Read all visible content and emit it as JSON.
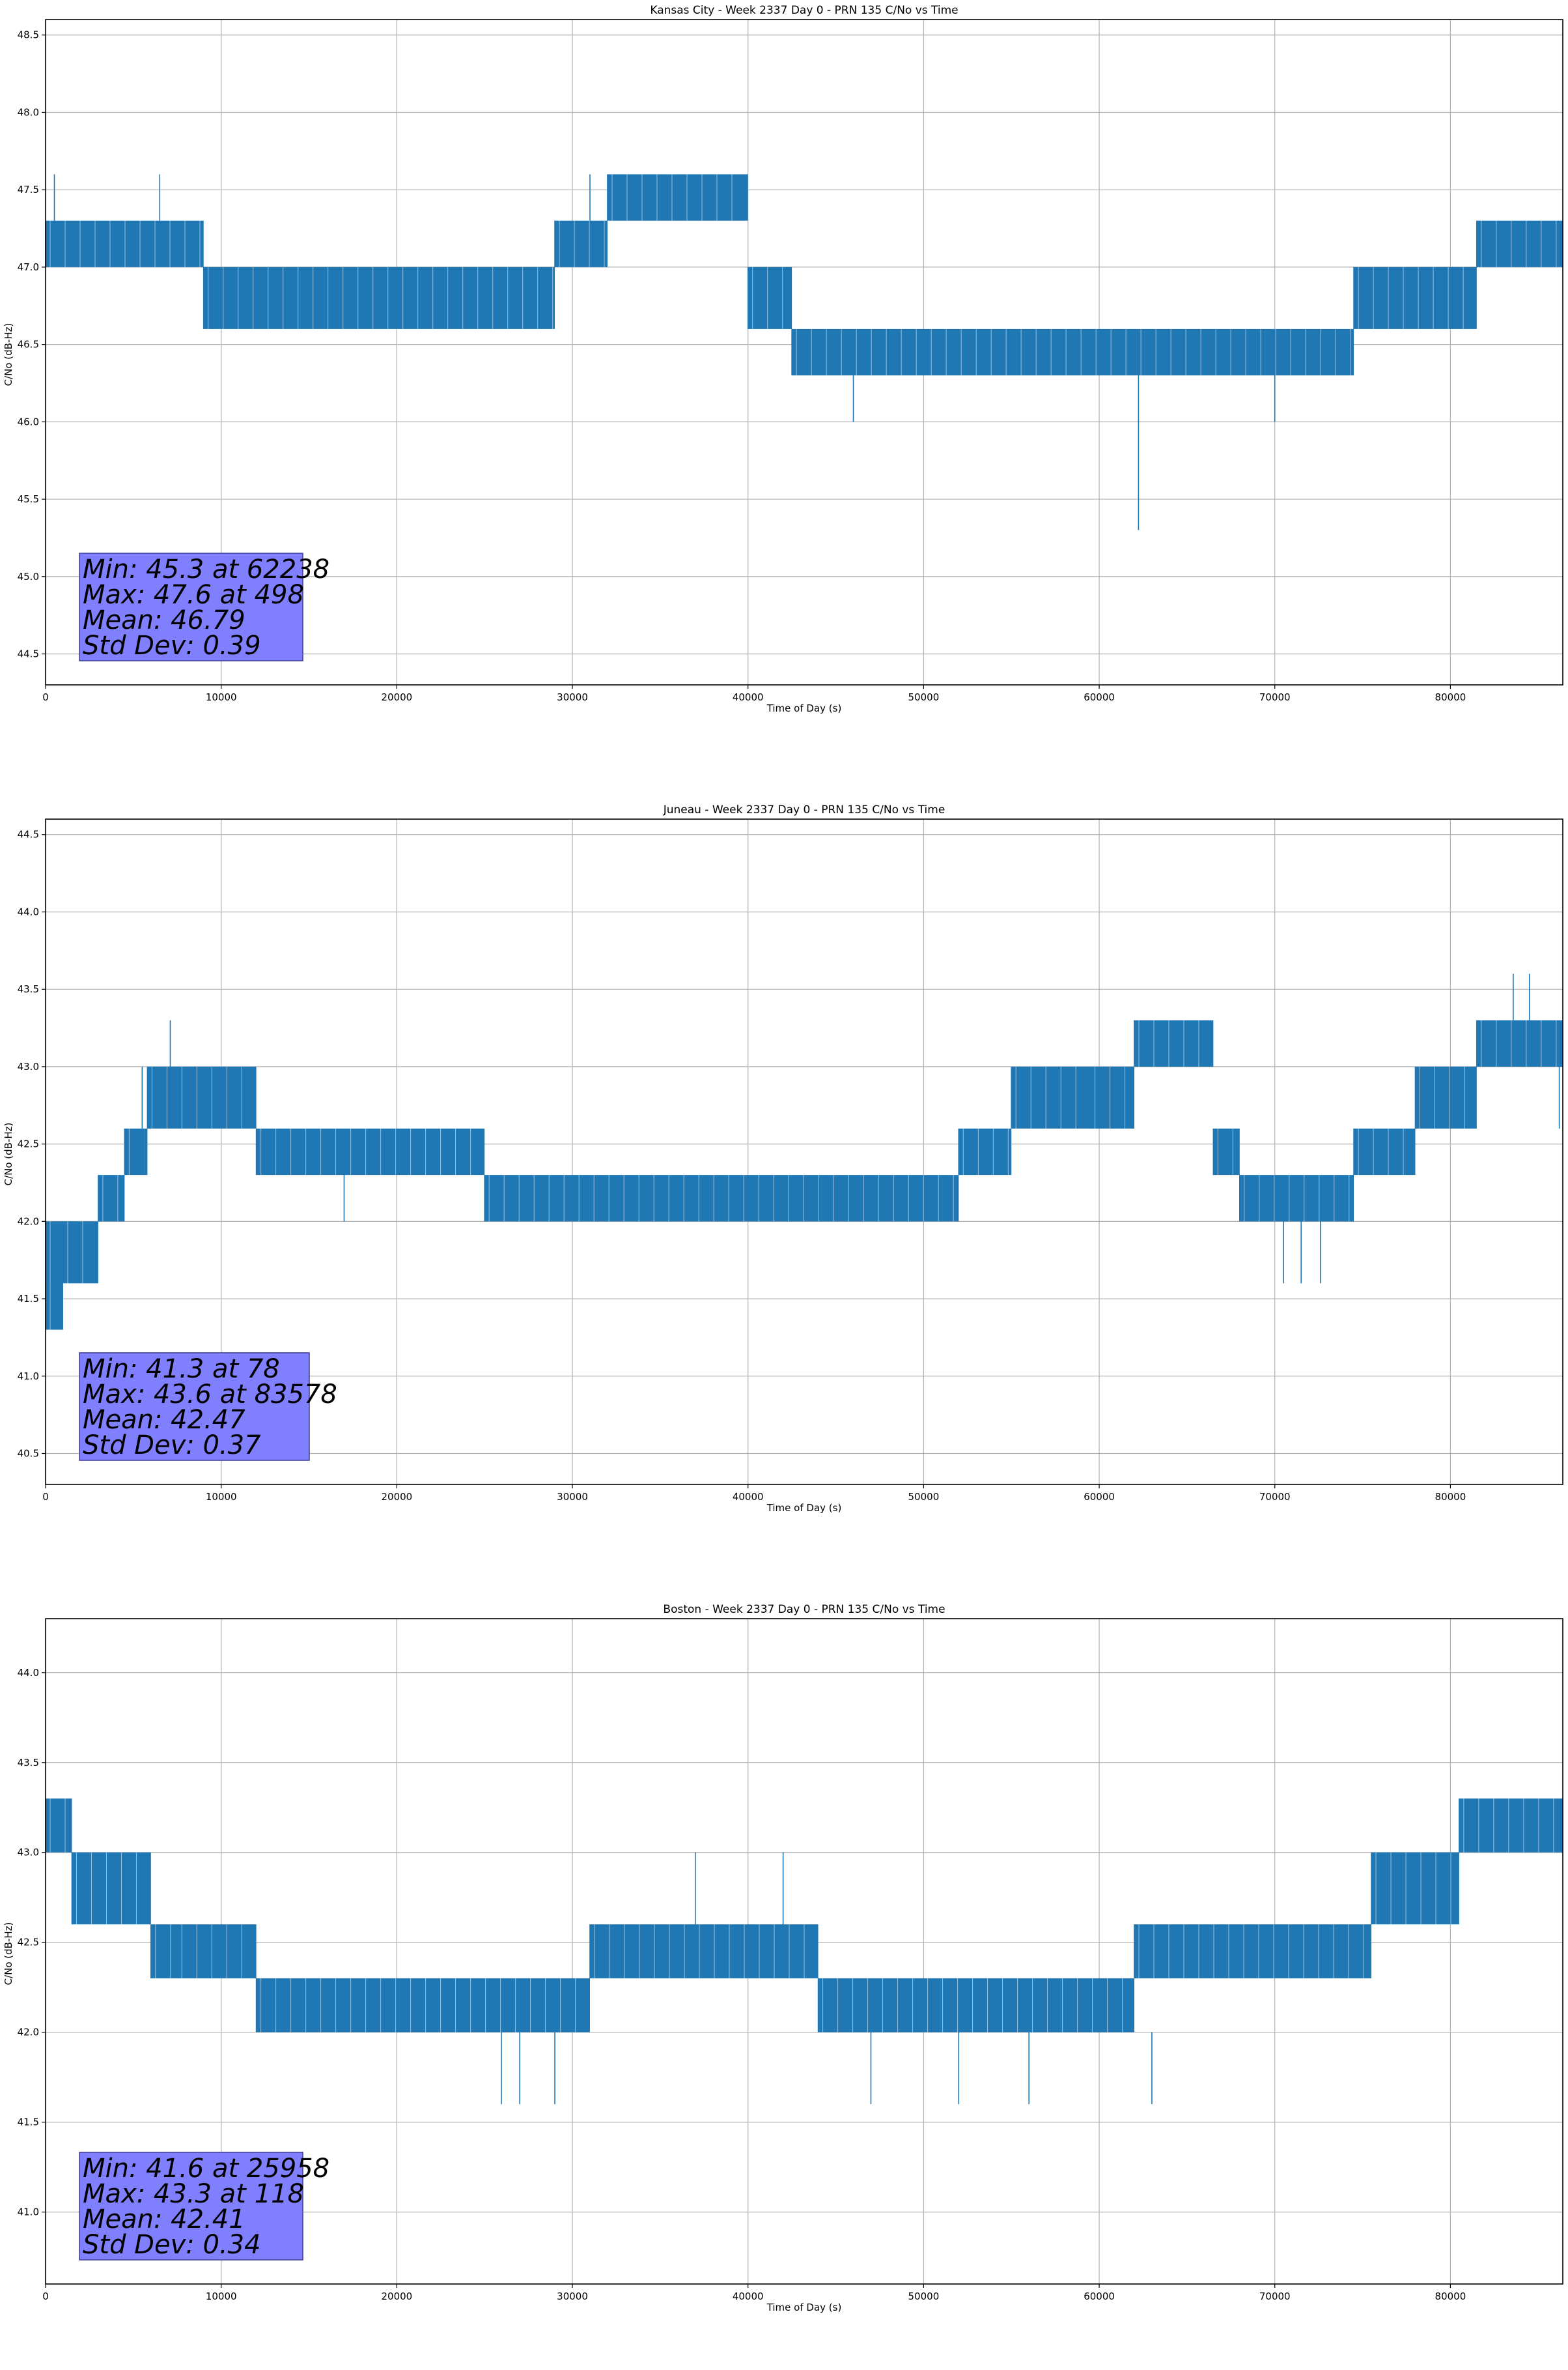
{
  "chart_data": [
    {
      "type": "line",
      "title": "Kansas City - Week 2337 Day 0 - PRN 135 C/No vs Time",
      "xlabel": "Time of Day (s)",
      "ylabel": "C/No (dB-Hz)",
      "xlim": [
        0,
        86400
      ],
      "ylim": [
        44.3,
        48.6
      ],
      "xticks": [
        0,
        10000,
        20000,
        30000,
        40000,
        50000,
        60000,
        70000,
        80000
      ],
      "yticks": [
        "44.5",
        "45.0",
        "45.5",
        "46.0",
        "46.5",
        "47.0",
        "47.5",
        "48.0",
        "48.5"
      ],
      "grid": true,
      "color": "#1f77b4",
      "series": [
        {
          "segments": [
            {
              "x": [
                0,
                9000
              ],
              "y": [
                47.0,
                47.3
              ]
            },
            {
              "x": [
                9000,
                29000
              ],
              "y": [
                46.6,
                47.0
              ]
            },
            {
              "x": [
                29000,
                32000
              ],
              "y": [
                47.0,
                47.3
              ]
            },
            {
              "x": [
                32000,
                40000
              ],
              "y": [
                47.3,
                47.6
              ]
            },
            {
              "x": [
                40000,
                42500
              ],
              "y": [
                46.6,
                47.0
              ]
            },
            {
              "x": [
                42500,
                74500
              ],
              "y": [
                46.3,
                46.6
              ]
            },
            {
              "x": [
                74500,
                81500
              ],
              "y": [
                46.6,
                47.0
              ]
            },
            {
              "x": [
                81500,
                86400
              ],
              "y": [
                47.0,
                47.3
              ]
            }
          ],
          "spikes": [
            {
              "x": 500,
              "y": [
                47.3,
                47.6
              ]
            },
            {
              "x": 6500,
              "y": [
                47.3,
                47.6
              ]
            },
            {
              "x": 9500,
              "y": [
                46.6,
                47.0
              ]
            },
            {
              "x": 31000,
              "y": [
                47.3,
                47.6
              ]
            },
            {
              "x": 46000,
              "y": [
                46.0,
                46.3
              ]
            },
            {
              "x": 62238,
              "y": [
                45.3,
                46.3
              ]
            },
            {
              "x": 70000,
              "y": [
                46.0,
                46.3
              ]
            },
            {
              "x": 76000,
              "y": [
                46.6,
                47.0
              ]
            }
          ]
        }
      ],
      "stats": {
        "line1": "Min: 45.3 at 62238",
        "line2": "Max: 47.6 at 498",
        "line3": "Mean: 46.79",
        "line4": "Std Dev: 0.39"
      }
    },
    {
      "type": "line",
      "title": "Juneau - Week 2337 Day 0 - PRN 135 C/No vs Time",
      "xlabel": "Time of Day (s)",
      "ylabel": "C/No (dB-Hz)",
      "xlim": [
        0,
        86400
      ],
      "ylim": [
        40.3,
        44.6
      ],
      "xticks": [
        0,
        10000,
        20000,
        30000,
        40000,
        50000,
        60000,
        70000,
        80000
      ],
      "yticks": [
        "40.5",
        "41.0",
        "41.5",
        "42.0",
        "42.5",
        "43.0",
        "43.5",
        "44.0",
        "44.5"
      ],
      "grid": true,
      "color": "#1f77b4",
      "series": [
        {
          "segments": [
            {
              "x": [
                0,
                1000
              ],
              "y": [
                41.3,
                42.0
              ]
            },
            {
              "x": [
                1000,
                3000
              ],
              "y": [
                41.6,
                42.0
              ]
            },
            {
              "x": [
                3000,
                4500
              ],
              "y": [
                42.0,
                42.3
              ]
            },
            {
              "x": [
                4500,
                5800
              ],
              "y": [
                42.3,
                42.6
              ]
            },
            {
              "x": [
                5800,
                12000
              ],
              "y": [
                42.6,
                43.0
              ]
            },
            {
              "x": [
                12000,
                25000
              ],
              "y": [
                42.3,
                42.6
              ]
            },
            {
              "x": [
                25000,
                52000
              ],
              "y": [
                42.0,
                42.3
              ]
            },
            {
              "x": [
                52000,
                55000
              ],
              "y": [
                42.3,
                42.6
              ]
            },
            {
              "x": [
                55000,
                59500
              ],
              "y": [
                42.6,
                43.0
              ]
            },
            {
              "x": [
                59500,
                62000
              ],
              "y": [
                42.6,
                43.0
              ]
            },
            {
              "x": [
                62000,
                66500
              ],
              "y": [
                43.0,
                43.3
              ]
            },
            {
              "x": [
                66500,
                68000
              ],
              "y": [
                42.3,
                42.6
              ]
            },
            {
              "x": [
                68000,
                74500
              ],
              "y": [
                42.0,
                42.3
              ]
            },
            {
              "x": [
                74500,
                78000
              ],
              "y": [
                42.3,
                42.6
              ]
            },
            {
              "x": [
                78000,
                81500
              ],
              "y": [
                42.6,
                43.0
              ]
            },
            {
              "x": [
                81500,
                86400
              ],
              "y": [
                43.0,
                43.3
              ]
            }
          ],
          "spikes": [
            {
              "x": 78,
              "y": [
                41.3,
                41.6
              ]
            },
            {
              "x": 5500,
              "y": [
                42.6,
                43.0
              ]
            },
            {
              "x": 5600,
              "y": [
                42.3,
                42.6
              ]
            },
            {
              "x": 7100,
              "y": [
                43.0,
                43.3
              ]
            },
            {
              "x": 17000,
              "y": [
                42.0,
                42.3
              ]
            },
            {
              "x": 70500,
              "y": [
                41.6,
                42.0
              ]
            },
            {
              "x": 71500,
              "y": [
                41.6,
                42.0
              ]
            },
            {
              "x": 72600,
              "y": [
                41.6,
                42.0
              ]
            },
            {
              "x": 83578,
              "y": [
                43.3,
                43.6
              ]
            },
            {
              "x": 84500,
              "y": [
                43.3,
                43.6
              ]
            },
            {
              "x": 86200,
              "y": [
                42.6,
                43.0
              ]
            }
          ]
        }
      ],
      "stats": {
        "line1": "Min: 41.3 at 78",
        "line2": "Max: 43.6 at 83578",
        "line3": "Mean: 42.47",
        "line4": "Std Dev: 0.37"
      }
    },
    {
      "type": "line",
      "title": "Boston - Week 2337 Day 0 - PRN 135 C/No vs Time",
      "xlabel": "Time of Day (s)",
      "ylabel": "C/No (dB-Hz)",
      "xlim": [
        0,
        86400
      ],
      "ylim": [
        40.6,
        44.3
      ],
      "xticks": [
        0,
        10000,
        20000,
        30000,
        40000,
        50000,
        60000,
        70000,
        80000
      ],
      "yticks": [
        "41.0",
        "41.5",
        "42.0",
        "42.5",
        "43.0",
        "43.5",
        "44.0"
      ],
      "grid": true,
      "color": "#1f77b4",
      "series": [
        {
          "segments": [
            {
              "x": [
                0,
                1500
              ],
              "y": [
                43.0,
                43.3
              ]
            },
            {
              "x": [
                1500,
                6000
              ],
              "y": [
                42.6,
                43.0
              ]
            },
            {
              "x": [
                6000,
                7500
              ],
              "y": [
                42.3,
                42.6
              ]
            },
            {
              "x": [
                7500,
                12000
              ],
              "y": [
                42.3,
                42.6
              ]
            },
            {
              "x": [
                12000,
                31000
              ],
              "y": [
                42.0,
                42.3
              ]
            },
            {
              "x": [
                31000,
                44000
              ],
              "y": [
                42.3,
                42.6
              ]
            },
            {
              "x": [
                44000,
                62000
              ],
              "y": [
                42.0,
                42.3
              ]
            },
            {
              "x": [
                62000,
                75500
              ],
              "y": [
                42.3,
                42.6
              ]
            },
            {
              "x": [
                75500,
                80500
              ],
              "y": [
                42.6,
                43.0
              ]
            },
            {
              "x": [
                80500,
                86400
              ],
              "y": [
                43.0,
                43.3
              ]
            }
          ],
          "spikes": [
            {
              "x": 118,
              "y": [
                43.0,
                43.3
              ]
            },
            {
              "x": 25958,
              "y": [
                41.6,
                42.0
              ]
            },
            {
              "x": 27000,
              "y": [
                41.6,
                42.0
              ]
            },
            {
              "x": 29000,
              "y": [
                41.6,
                42.0
              ]
            },
            {
              "x": 37000,
              "y": [
                42.6,
                43.0
              ]
            },
            {
              "x": 42000,
              "y": [
                42.6,
                43.0
              ]
            },
            {
              "x": 47000,
              "y": [
                41.6,
                42.0
              ]
            },
            {
              "x": 52000,
              "y": [
                41.6,
                42.0
              ]
            },
            {
              "x": 56000,
              "y": [
                41.6,
                42.0
              ]
            },
            {
              "x": 63000,
              "y": [
                41.6,
                42.0
              ]
            }
          ]
        }
      ],
      "stats": {
        "line1": "Min: 41.6 at 25958",
        "line2": "Max: 43.3 at 118",
        "line3": "Mean: 42.41",
        "line4": "Std Dev: 0.34"
      }
    }
  ]
}
